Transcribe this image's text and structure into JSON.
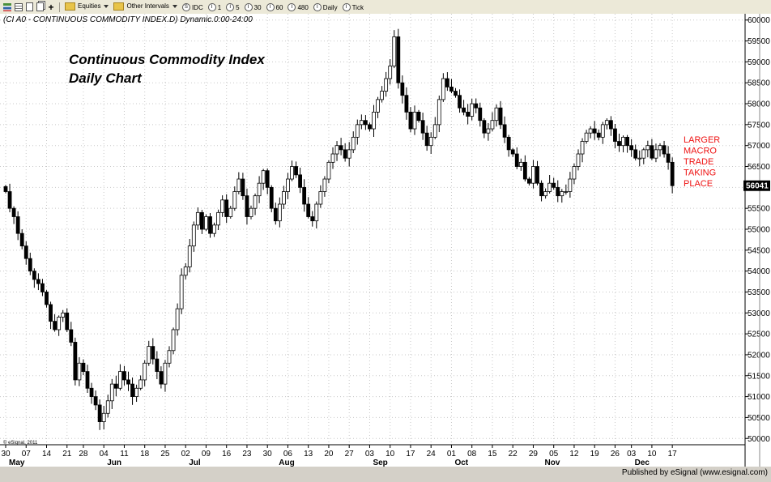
{
  "toolbar": {
    "menus": [
      {
        "label": "Equities",
        "has_dropdown": true,
        "icon": "folder-icon"
      },
      {
        "label": "Other Intervals",
        "has_dropdown": true,
        "icon": "folder-icon"
      }
    ],
    "buttons": [
      {
        "label": "IDC",
        "icon": "s-circle-icon",
        "glyph": "S"
      },
      {
        "label": "1",
        "icon": "interval-icon",
        "glyph": "I"
      },
      {
        "label": "5",
        "icon": "interval-icon",
        "glyph": "I"
      },
      {
        "label": "30",
        "icon": "interval-icon",
        "glyph": "I"
      },
      {
        "label": "60",
        "icon": "interval-icon",
        "glyph": "I"
      },
      {
        "label": "480",
        "icon": "interval-icon",
        "glyph": "I"
      },
      {
        "label": "Daily",
        "icon": "interval-icon",
        "glyph": "I"
      },
      {
        "label": "Tick",
        "icon": "interval-icon",
        "glyph": "I"
      }
    ]
  },
  "chart": {
    "header": "(CI A0 - CONTINUOUS COMMODITY INDEX.D) Dynamic.0:00-24:00",
    "watermark": "© eSignal, 2011",
    "footer": "Published by eSignal (www.esignal.com)"
  },
  "chart_data": {
    "type": "candlestick",
    "title": "Continuous Commodity Index",
    "subtitle": "Daily Chart",
    "annotation": [
      "LARGER",
      "MACRO",
      "TRADE",
      "TAKING",
      "PLACE"
    ],
    "last_price_label": "56041",
    "ylim": [
      49850,
      60150
    ],
    "y_ticks": [
      50000,
      50500,
      51000,
      51500,
      52000,
      52500,
      53000,
      53500,
      54000,
      54500,
      55000,
      55500,
      56000,
      56500,
      57000,
      57500,
      58000,
      58500,
      59000,
      59500,
      60000
    ],
    "x_day_labels": [
      {
        "i": 0,
        "t": "30"
      },
      {
        "i": 5,
        "t": "07"
      },
      {
        "i": 10,
        "t": "14"
      },
      {
        "i": 15,
        "t": "21"
      },
      {
        "i": 19,
        "t": "28"
      },
      {
        "i": 24,
        "t": "04"
      },
      {
        "i": 29,
        "t": "11"
      },
      {
        "i": 34,
        "t": "18"
      },
      {
        "i": 39,
        "t": "25"
      },
      {
        "i": 44,
        "t": "02"
      },
      {
        "i": 49,
        "t": "09"
      },
      {
        "i": 54,
        "t": "16"
      },
      {
        "i": 59,
        "t": "23"
      },
      {
        "i": 64,
        "t": "30"
      },
      {
        "i": 69,
        "t": "06"
      },
      {
        "i": 74,
        "t": "13"
      },
      {
        "i": 79,
        "t": "20"
      },
      {
        "i": 84,
        "t": "27"
      },
      {
        "i": 89,
        "t": "03"
      },
      {
        "i": 94,
        "t": "10"
      },
      {
        "i": 99,
        "t": "17"
      },
      {
        "i": 104,
        "t": "24"
      },
      {
        "i": 109,
        "t": "01"
      },
      {
        "i": 114,
        "t": "08"
      },
      {
        "i": 119,
        "t": "15"
      },
      {
        "i": 124,
        "t": "22"
      },
      {
        "i": 129,
        "t": "29"
      },
      {
        "i": 134,
        "t": "05"
      },
      {
        "i": 139,
        "t": "12"
      },
      {
        "i": 144,
        "t": "19"
      },
      {
        "i": 149,
        "t": "26"
      },
      {
        "i": 153,
        "t": "03"
      },
      {
        "i": 158,
        "t": "10"
      },
      {
        "i": 163,
        "t": "17"
      }
    ],
    "x_month_labels": [
      {
        "i": 0,
        "t": "May"
      },
      {
        "i": 24,
        "t": "Jun"
      },
      {
        "i": 44,
        "t": "Jul"
      },
      {
        "i": 66,
        "t": "Aug"
      },
      {
        "i": 89,
        "t": "Sep"
      },
      {
        "i": 109,
        "t": "Oct"
      },
      {
        "i": 131,
        "t": "Nov"
      },
      {
        "i": 153,
        "t": "Dec"
      }
    ],
    "closes": [
      55900,
      55500,
      55300,
      54900,
      54600,
      54300,
      54000,
      53800,
      53700,
      53500,
      53200,
      52800,
      52600,
      52900,
      53000,
      52600,
      52300,
      51400,
      51800,
      51600,
      51200,
      51000,
      50800,
      50400,
      50600,
      50900,
      51300,
      51200,
      51600,
      51400,
      51300,
      51000,
      51200,
      51400,
      51800,
      52200,
      51900,
      51600,
      51300,
      51800,
      52100,
      52600,
      53100,
      53900,
      54100,
      54600,
      55100,
      55400,
      55000,
      55300,
      54900,
      55100,
      55400,
      55700,
      55300,
      55500,
      55900,
      56200,
      55800,
      55300,
      55500,
      55800,
      56100,
      56400,
      56000,
      55500,
      55200,
      55600,
      55900,
      56200,
      56500,
      56300,
      56000,
      55600,
      55300,
      55200,
      55600,
      55900,
      56200,
      56600,
      56800,
      57000,
      56900,
      56700,
      56900,
      57200,
      57500,
      57600,
      57500,
      57400,
      57800,
      58100,
      58300,
      58600,
      58900,
      59600,
      58500,
      58200,
      57800,
      57400,
      57800,
      57600,
      57300,
      57000,
      57200,
      57500,
      58100,
      58600,
      58400,
      58300,
      58200,
      57900,
      57800,
      57700,
      58000,
      57900,
      57600,
      57300,
      57400,
      57600,
      57900,
      57500,
      57200,
      56900,
      56800,
      56500,
      56600,
      56200,
      56100,
      56500,
      56100,
      55800,
      55900,
      56100,
      56000,
      55800,
      55900,
      55900,
      56200,
      56500,
      56800,
      57100,
      57300,
      57400,
      57300,
      57200,
      57500,
      57600,
      57400,
      57100,
      57000,
      57200,
      57000,
      56900,
      56700,
      56700,
      56900,
      57000,
      56700,
      56900,
      57000,
      56800,
      56600,
      56041
    ]
  }
}
